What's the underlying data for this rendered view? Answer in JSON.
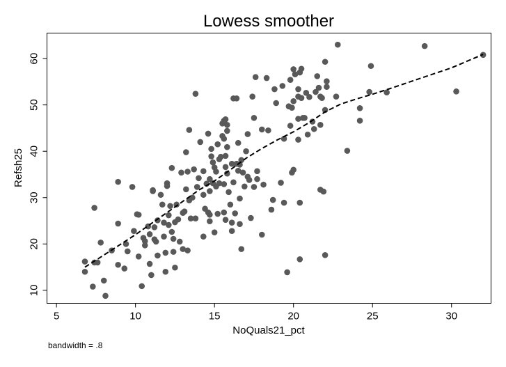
{
  "chart_data": {
    "type": "scatter",
    "title": "Lowess smoother",
    "xlabel": "NoQuals21_pct",
    "ylabel": "Refsh25",
    "note": "bandwidth = .8",
    "xlim": [
      4.4,
      32.5
    ],
    "ylim": [
      7.2,
      65.5
    ],
    "xticks": [
      5,
      10,
      15,
      20,
      25,
      30
    ],
    "yticks": [
      10,
      20,
      30,
      40,
      50,
      60
    ],
    "grid": false,
    "legend": "none",
    "marker_color": "#595959",
    "line_color": "#000000",
    "series": [
      {
        "type": "scatter",
        "points": [
          [
            6.8,
            16.2
          ],
          [
            6.8,
            14.0
          ],
          [
            7.3,
            10.8
          ],
          [
            7.4,
            27.8
          ],
          [
            7.4,
            16.0
          ],
          [
            7.6,
            16.0
          ],
          [
            7.8,
            20.3
          ],
          [
            8.0,
            12.1
          ],
          [
            8.1,
            8.8
          ],
          [
            8.5,
            18.6
          ],
          [
            8.9,
            33.4
          ],
          [
            8.9,
            24.4
          ],
          [
            8.9,
            15.5
          ],
          [
            9.3,
            14.7
          ],
          [
            9.4,
            20.0
          ],
          [
            9.5,
            18.4
          ],
          [
            9.8,
            32.3
          ],
          [
            9.9,
            22.8
          ],
          [
            10.1,
            26.4
          ],
          [
            10.2,
            26.3
          ],
          [
            10.2,
            17.3
          ],
          [
            10.4,
            10.9
          ],
          [
            10.5,
            21.3
          ],
          [
            10.6,
            20.6
          ],
          [
            10.6,
            19.7
          ],
          [
            10.8,
            23.8
          ],
          [
            10.9,
            22.1
          ],
          [
            10.9,
            15.7
          ],
          [
            11.0,
            13.3
          ],
          [
            11.1,
            31.6
          ],
          [
            11.1,
            31.4
          ],
          [
            11.2,
            23.6
          ],
          [
            11.2,
            21.0
          ],
          [
            11.3,
            20.5
          ],
          [
            11.4,
            25.1
          ],
          [
            11.4,
            17.5
          ],
          [
            11.6,
            30.6
          ],
          [
            11.7,
            28.5
          ],
          [
            11.8,
            24.6
          ],
          [
            11.8,
            21.6
          ],
          [
            11.9,
            14.0
          ],
          [
            11.9,
            18.1
          ],
          [
            12.0,
            33.1
          ],
          [
            12.0,
            32.5
          ],
          [
            12.1,
            26.2
          ],
          [
            12.1,
            24.1
          ],
          [
            12.2,
            28.2
          ],
          [
            12.3,
            36.4
          ],
          [
            12.3,
            22.6
          ],
          [
            12.4,
            21.1
          ],
          [
            12.4,
            18.3
          ],
          [
            12.5,
            24.7
          ],
          [
            12.5,
            14.9
          ],
          [
            12.6,
            28.5
          ],
          [
            12.7,
            25.3
          ],
          [
            12.8,
            20.5
          ],
          [
            12.9,
            35.4
          ],
          [
            13.0,
            26.7
          ],
          [
            13.0,
            18.9
          ],
          [
            13.1,
            27.0
          ],
          [
            13.2,
            31.8
          ],
          [
            13.2,
            39.8
          ],
          [
            13.3,
            35.6
          ],
          [
            13.3,
            18.6
          ],
          [
            13.4,
            44.6
          ],
          [
            13.4,
            29.4
          ],
          [
            13.5,
            25.5
          ],
          [
            13.6,
            30.0
          ],
          [
            13.7,
            36.1
          ],
          [
            13.8,
            52.4
          ],
          [
            13.8,
            25.5
          ],
          [
            13.9,
            32.3
          ],
          [
            14.0,
            34.2
          ],
          [
            14.1,
            42.0
          ],
          [
            14.3,
            35.7
          ],
          [
            14.3,
            30.6
          ],
          [
            14.3,
            21.6
          ],
          [
            14.4,
            27.6
          ],
          [
            14.5,
            33.0
          ],
          [
            14.6,
            43.8
          ],
          [
            14.6,
            26.8
          ],
          [
            14.7,
            34.0
          ],
          [
            14.7,
            31.4
          ],
          [
            14.7,
            26.3
          ],
          [
            14.7,
            24.9
          ],
          [
            14.8,
            40.5
          ],
          [
            14.8,
            38.9
          ],
          [
            14.9,
            37.6
          ],
          [
            14.9,
            33.1
          ],
          [
            15.0,
            36.5
          ],
          [
            15.0,
            22.5
          ],
          [
            15.1,
            35.6
          ],
          [
            15.1,
            32.4
          ],
          [
            15.2,
            41.5
          ],
          [
            15.2,
            26.5
          ],
          [
            15.3,
            38.3
          ],
          [
            15.3,
            33.1
          ],
          [
            15.4,
            38.8
          ],
          [
            15.5,
            43.3
          ],
          [
            15.5,
            46.0
          ],
          [
            15.6,
            46.6
          ],
          [
            15.6,
            42.7
          ],
          [
            15.6,
            32.9
          ],
          [
            15.6,
            26.8
          ],
          [
            15.7,
            46.9
          ],
          [
            15.7,
            39.0
          ],
          [
            15.7,
            36.6
          ],
          [
            15.7,
            25.2
          ],
          [
            15.8,
            45.7
          ],
          [
            15.8,
            44.4
          ],
          [
            15.8,
            40.9
          ],
          [
            15.8,
            35.2
          ],
          [
            15.9,
            31.2
          ],
          [
            16.0,
            28.5
          ],
          [
            16.1,
            37.3
          ],
          [
            16.1,
            22.8
          ],
          [
            16.1,
            24.6
          ],
          [
            16.2,
            51.4
          ],
          [
            16.2,
            33.3
          ],
          [
            16.3,
            26.6
          ],
          [
            16.4,
            51.4
          ],
          [
            16.4,
            37.3
          ],
          [
            16.5,
            41.8
          ],
          [
            16.5,
            35.8
          ],
          [
            16.6,
            37.1
          ],
          [
            16.6,
            29.8
          ],
          [
            16.6,
            24.3
          ],
          [
            16.7,
            38.1
          ],
          [
            16.7,
            18.9
          ],
          [
            16.8,
            35.4
          ],
          [
            16.9,
            32.4
          ],
          [
            17.0,
            40.0
          ],
          [
            17.1,
            43.7
          ],
          [
            17.1,
            34.5
          ],
          [
            17.2,
            33.8
          ],
          [
            17.3,
            25.6
          ],
          [
            17.4,
            51.8
          ],
          [
            17.5,
            47.2
          ],
          [
            17.5,
            32.3
          ],
          [
            17.6,
            56.0
          ],
          [
            17.7,
            35.7
          ],
          [
            17.7,
            34.0
          ],
          [
            18.0,
            44.7
          ],
          [
            18.0,
            22.0
          ],
          [
            18.1,
            32.8
          ],
          [
            18.3,
            55.8
          ],
          [
            18.4,
            44.5
          ],
          [
            18.6,
            27.4
          ],
          [
            18.7,
            29.5
          ],
          [
            18.8,
            53.4
          ],
          [
            18.9,
            50.4
          ],
          [
            19.2,
            33.2
          ],
          [
            19.3,
            54.1
          ],
          [
            19.4,
            28.9
          ],
          [
            19.4,
            42.7
          ],
          [
            19.6,
            13.9
          ],
          [
            19.7,
            49.7
          ],
          [
            19.8,
            55.4
          ],
          [
            19.8,
            45.5
          ],
          [
            19.9,
            49.4
          ],
          [
            19.9,
            35.4
          ],
          [
            20.0,
            57.7
          ],
          [
            20.0,
            50.8
          ],
          [
            20.0,
            36.0
          ],
          [
            20.1,
            56.6
          ],
          [
            20.3,
            53.4
          ],
          [
            20.3,
            51.8
          ],
          [
            20.3,
            47.0
          ],
          [
            20.3,
            42.5
          ],
          [
            20.4,
            57.0
          ],
          [
            20.4,
            16.7
          ],
          [
            20.4,
            28.9
          ],
          [
            20.5,
            51.5
          ],
          [
            20.5,
            57.8
          ],
          [
            20.6,
            47.2
          ],
          [
            20.7,
            47.2
          ],
          [
            20.8,
            52.6
          ],
          [
            20.9,
            43.6
          ],
          [
            21.0,
            51.7
          ],
          [
            21.2,
            46.4
          ],
          [
            21.3,
            44.8
          ],
          [
            21.4,
            52.8
          ],
          [
            21.5,
            56.2
          ],
          [
            21.6,
            53.7
          ],
          [
            21.7,
            51.8
          ],
          [
            21.7,
            45.7
          ],
          [
            21.7,
            31.7
          ],
          [
            21.8,
            51.5
          ],
          [
            21.9,
            31.3
          ],
          [
            22.0,
            48.9
          ],
          [
            22.0,
            17.6
          ],
          [
            22.0,
            59.3
          ],
          [
            22.1,
            55.1
          ],
          [
            22.1,
            53.9
          ],
          [
            22.7,
            51.8
          ],
          [
            22.8,
            63.0
          ],
          [
            23.4,
            40.1
          ],
          [
            24.2,
            49.3
          ],
          [
            24.2,
            46.6
          ],
          [
            24.8,
            52.8
          ],
          [
            24.9,
            58.4
          ],
          [
            25.9,
            52.7
          ],
          [
            28.3,
            62.7
          ],
          [
            30.3,
            52.9
          ],
          [
            32.0,
            60.8
          ]
        ]
      },
      {
        "type": "line",
        "style": "dashed",
        "points": [
          [
            6.8,
            15.0
          ],
          [
            8.0,
            17.6
          ],
          [
            10.0,
            22.0
          ],
          [
            12.0,
            26.8
          ],
          [
            14.0,
            31.6
          ],
          [
            15.0,
            33.6
          ],
          [
            16.0,
            36.0
          ],
          [
            17.0,
            38.5
          ],
          [
            18.0,
            40.6
          ],
          [
            19.0,
            42.5
          ],
          [
            20.0,
            44.2
          ],
          [
            21.0,
            46.2
          ],
          [
            22.0,
            48.5
          ],
          [
            23.0,
            50.2
          ],
          [
            24.0,
            51.3
          ],
          [
            25.0,
            52.3
          ],
          [
            26.0,
            53.4
          ],
          [
            28.0,
            55.7
          ],
          [
            30.0,
            58.0
          ],
          [
            32.0,
            60.9
          ]
        ]
      }
    ]
  }
}
